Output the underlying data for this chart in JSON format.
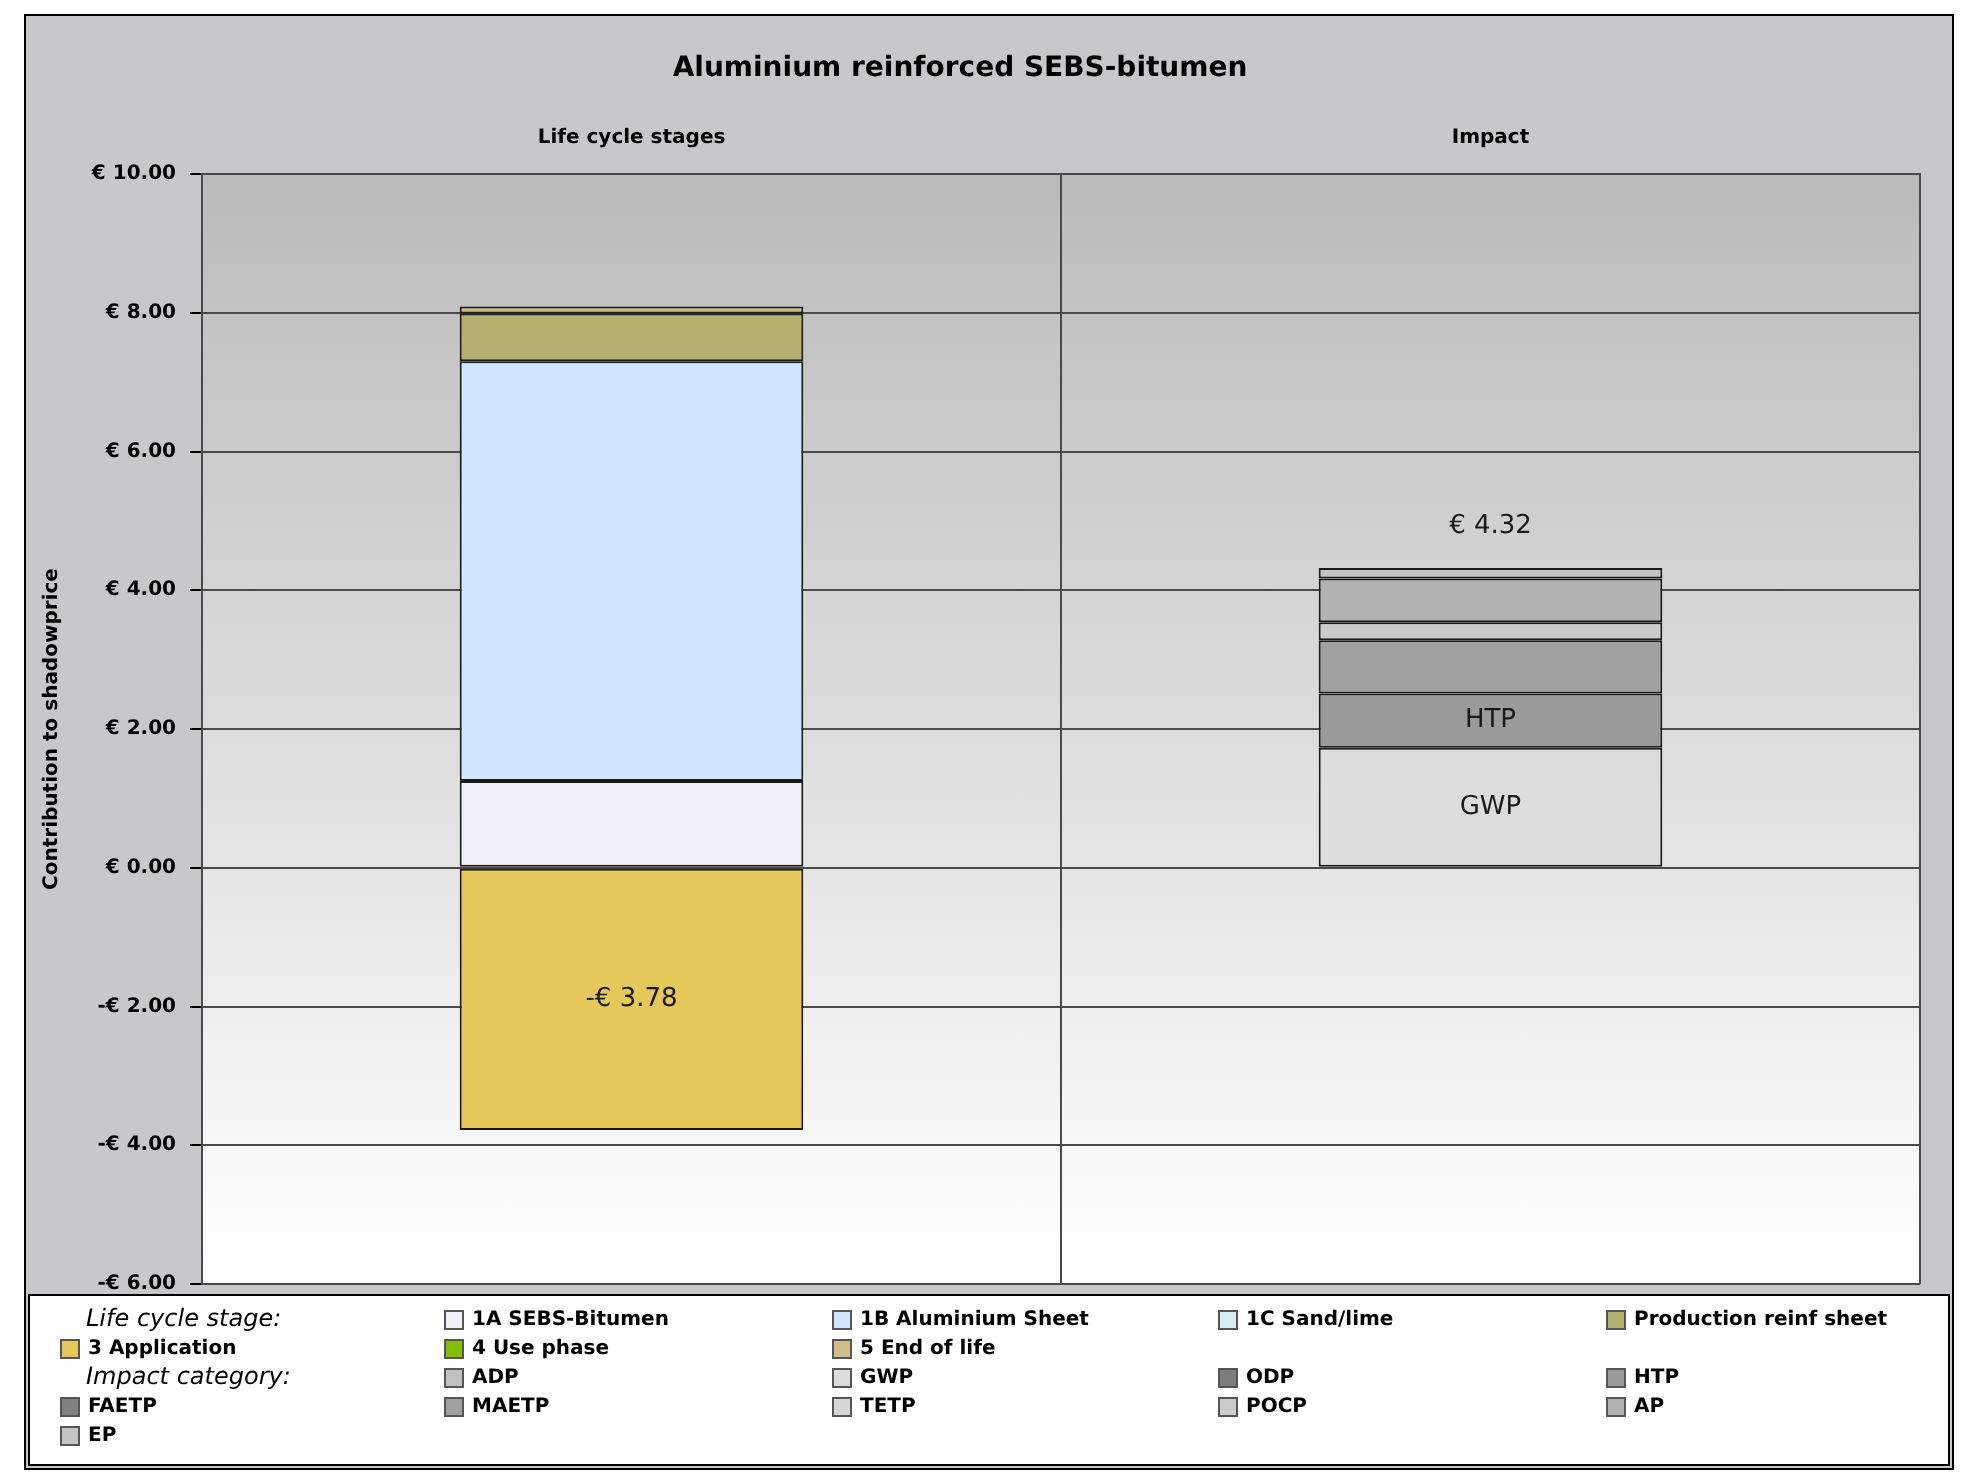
{
  "chart_data": {
    "type": "bar",
    "title": "Aluminium reinforced SEBS-bitumen",
    "ylabel": "Contribution to shadowprice",
    "categories": [
      "Life cycle stages",
      "Impact"
    ],
    "stacked": true,
    "series": [
      {
        "name": "1A SEBS-Bitumen",
        "color": "#eef0f8",
        "values": [
          1.25,
          null
        ]
      },
      {
        "name": "1B Aluminium Sheet",
        "color": "#d0e6ff",
        "values": [
          6.05,
          null
        ]
      },
      {
        "name": "1C Sand/lime",
        "color": "#d6eef2",
        "values": [
          0,
          null
        ]
      },
      {
        "name": "Production reinf sheet",
        "color": "#b4b070",
        "values": [
          0.69,
          null
        ]
      },
      {
        "name": "3 Application",
        "color": "#e6c85a",
        "values": [
          -3.78,
          null
        ],
        "value_labels": [
          "-€ 3.78",
          null
        ]
      },
      {
        "name": "4 Use phase",
        "color": "#80c000",
        "values": [
          0,
          null
        ]
      },
      {
        "name": "5 End of life",
        "color": "#d2bc8c",
        "values": [
          0.1,
          null
        ]
      },
      {
        "name": "ADP",
        "color": "#c0c0c0",
        "values": [
          null,
          0
        ]
      },
      {
        "name": "GWP",
        "color": "#dcdcdc",
        "values": [
          null,
          1.73
        ],
        "value_labels": [
          null,
          "GWP"
        ]
      },
      {
        "name": "ODP",
        "color": "#7c7c7c",
        "values": [
          null,
          0
        ]
      },
      {
        "name": "HTP",
        "color": "#9a9a9a",
        "values": [
          null,
          0.78
        ],
        "value_labels": [
          null,
          "HTP"
        ]
      },
      {
        "name": "FAETP",
        "color": "#808080",
        "values": [
          null,
          0
        ]
      },
      {
        "name": "MAETP",
        "color": "#a0a0a0",
        "values": [
          null,
          0.77
        ]
      },
      {
        "name": "TETP",
        "color": "#d6d6d6",
        "values": [
          null,
          0
        ]
      },
      {
        "name": "POCP",
        "color": "#cbcbcb",
        "values": [
          null,
          0.26
        ]
      },
      {
        "name": "AP",
        "color": "#b2b2b2",
        "values": [
          null,
          0.63
        ]
      },
      {
        "name": "EP",
        "color": "#c4c4c4",
        "values": [
          null,
          0.15
        ]
      }
    ],
    "ylim": [
      -6,
      10
    ],
    "yticks": [
      {
        "value": -6,
        "label": "-€ 6.00"
      },
      {
        "value": -4,
        "label": "-€ 4.00"
      },
      {
        "value": -2,
        "label": "-€ 2.00"
      },
      {
        "value": 0,
        "label": "€ 0.00"
      },
      {
        "value": 2,
        "label": "€ 2.00"
      },
      {
        "value": 4,
        "label": "€ 4.00"
      },
      {
        "value": 6,
        "label": "€ 6.00"
      },
      {
        "value": 8,
        "label": "€ 8.00"
      },
      {
        "value": 10,
        "label": "€ 10.00"
      }
    ],
    "grid": true,
    "legend": "bottom",
    "totals": [
      null,
      "€ 4.32"
    ],
    "annotations": [
      "Life cycle stage:",
      "Impact category:"
    ]
  }
}
